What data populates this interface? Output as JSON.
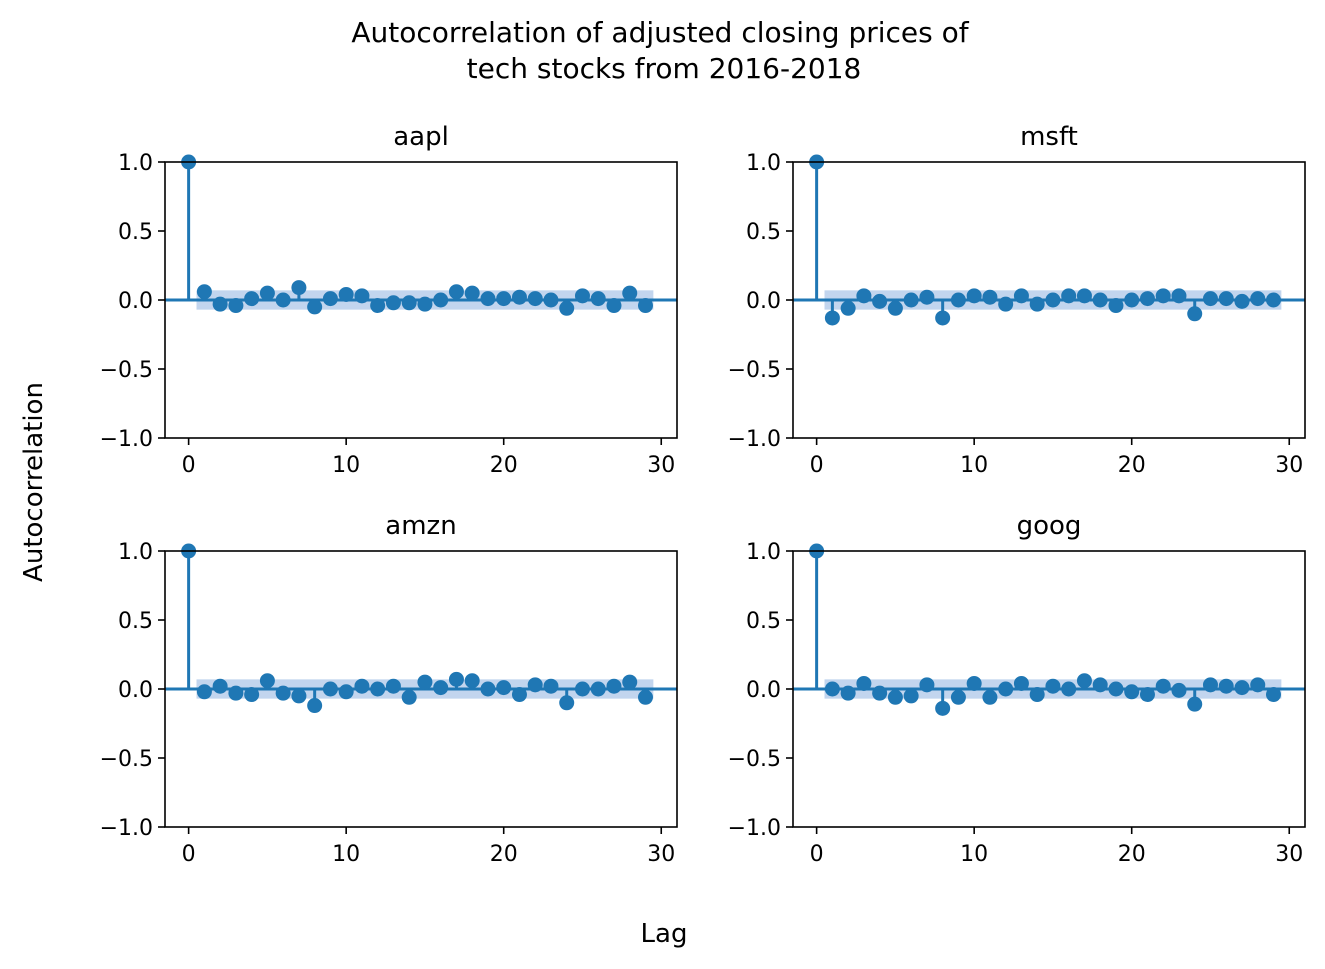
{
  "figure": {
    "title_lines": [
      "Autocorrelation of adjusted closing prices of",
      "tech stocks from 2016-2018"
    ],
    "xlabel": "Lag",
    "ylabel": "Autocorrelation",
    "colors": {
      "stem": "#1f77b4",
      "band": "#aec7e8",
      "axis": "#000000"
    }
  },
  "chart_data": [
    {
      "type": "stem",
      "title": "aapl",
      "xlim": [
        -1.5,
        31
      ],
      "ylim": [
        -1.0,
        1.0
      ],
      "xticks": [
        0,
        10,
        20,
        30
      ],
      "yticks": [
        1.0,
        0.5,
        0.0,
        -0.5,
        -1.0
      ],
      "ytick_labels": [
        "1.0",
        "0.5",
        "0.0",
        "−0.5",
        "−1.0"
      ],
      "confidence_band": [
        -0.07,
        0.07
      ],
      "lags": [
        0,
        1,
        2,
        3,
        4,
        5,
        6,
        7,
        8,
        9,
        10,
        11,
        12,
        13,
        14,
        15,
        16,
        17,
        18,
        19,
        20,
        21,
        22,
        23,
        24,
        25,
        26,
        27,
        28,
        29
      ],
      "values": [
        1.0,
        0.06,
        -0.03,
        -0.04,
        0.01,
        0.05,
        0.0,
        0.09,
        -0.05,
        0.01,
        0.04,
        0.03,
        -0.04,
        -0.02,
        -0.02,
        -0.03,
        0.0,
        0.06,
        0.05,
        0.01,
        0.01,
        0.02,
        0.01,
        0.0,
        -0.06,
        0.03,
        0.01,
        -0.04,
        0.05,
        -0.04
      ]
    },
    {
      "type": "stem",
      "title": "msft",
      "xlim": [
        -1.5,
        31
      ],
      "ylim": [
        -1.0,
        1.0
      ],
      "xticks": [
        0,
        10,
        20,
        30
      ],
      "yticks": [
        1.0,
        0.5,
        0.0,
        -0.5,
        -1.0
      ],
      "ytick_labels": [
        "1.0",
        "0.5",
        "0.0",
        "−0.5",
        "−1.0"
      ],
      "confidence_band": [
        -0.07,
        0.07
      ],
      "lags": [
        0,
        1,
        2,
        3,
        4,
        5,
        6,
        7,
        8,
        9,
        10,
        11,
        12,
        13,
        14,
        15,
        16,
        17,
        18,
        19,
        20,
        21,
        22,
        23,
        24,
        25,
        26,
        27,
        28,
        29
      ],
      "values": [
        1.0,
        -0.13,
        -0.06,
        0.03,
        -0.01,
        -0.06,
        0.0,
        0.02,
        -0.13,
        0.0,
        0.03,
        0.02,
        -0.03,
        0.03,
        -0.03,
        0.0,
        0.03,
        0.03,
        0.0,
        -0.04,
        0.0,
        0.01,
        0.03,
        0.03,
        -0.1,
        0.01,
        0.01,
        -0.01,
        0.01,
        0.0
      ]
    },
    {
      "type": "stem",
      "title": "amzn",
      "xlim": [
        -1.5,
        31
      ],
      "ylim": [
        -1.0,
        1.0
      ],
      "xticks": [
        0,
        10,
        20,
        30
      ],
      "yticks": [
        1.0,
        0.5,
        0.0,
        -0.5,
        -1.0
      ],
      "ytick_labels": [
        "1.0",
        "0.5",
        "0.0",
        "−0.5",
        "−1.0"
      ],
      "confidence_band": [
        -0.07,
        0.07
      ],
      "lags": [
        0,
        1,
        2,
        3,
        4,
        5,
        6,
        7,
        8,
        9,
        10,
        11,
        12,
        13,
        14,
        15,
        16,
        17,
        18,
        19,
        20,
        21,
        22,
        23,
        24,
        25,
        26,
        27,
        28,
        29
      ],
      "values": [
        1.0,
        -0.02,
        0.02,
        -0.03,
        -0.04,
        0.06,
        -0.03,
        -0.05,
        -0.12,
        0.0,
        -0.02,
        0.02,
        0.0,
        0.02,
        -0.06,
        0.05,
        0.01,
        0.07,
        0.06,
        0.0,
        0.01,
        -0.04,
        0.03,
        0.02,
        -0.1,
        0.0,
        0.0,
        0.02,
        0.05,
        -0.06
      ]
    },
    {
      "type": "stem",
      "title": "goog",
      "xlim": [
        -1.5,
        31
      ],
      "ylim": [
        -1.0,
        1.0
      ],
      "xticks": [
        0,
        10,
        20,
        30
      ],
      "yticks": [
        1.0,
        0.5,
        0.0,
        -0.5,
        -1.0
      ],
      "ytick_labels": [
        "1.0",
        "0.5",
        "0.0",
        "−0.5",
        "−1.0"
      ],
      "confidence_band": [
        -0.07,
        0.07
      ],
      "lags": [
        0,
        1,
        2,
        3,
        4,
        5,
        6,
        7,
        8,
        9,
        10,
        11,
        12,
        13,
        14,
        15,
        16,
        17,
        18,
        19,
        20,
        21,
        22,
        23,
        24,
        25,
        26,
        27,
        28,
        29
      ],
      "values": [
        1.0,
        0.0,
        -0.03,
        0.04,
        -0.03,
        -0.06,
        -0.05,
        0.03,
        -0.14,
        -0.06,
        0.04,
        -0.06,
        0.0,
        0.04,
        -0.04,
        0.02,
        0.0,
        0.06,
        0.03,
        0.0,
        -0.02,
        -0.04,
        0.02,
        -0.01,
        -0.11,
        0.03,
        0.02,
        0.01,
        0.03,
        -0.04
      ]
    }
  ]
}
